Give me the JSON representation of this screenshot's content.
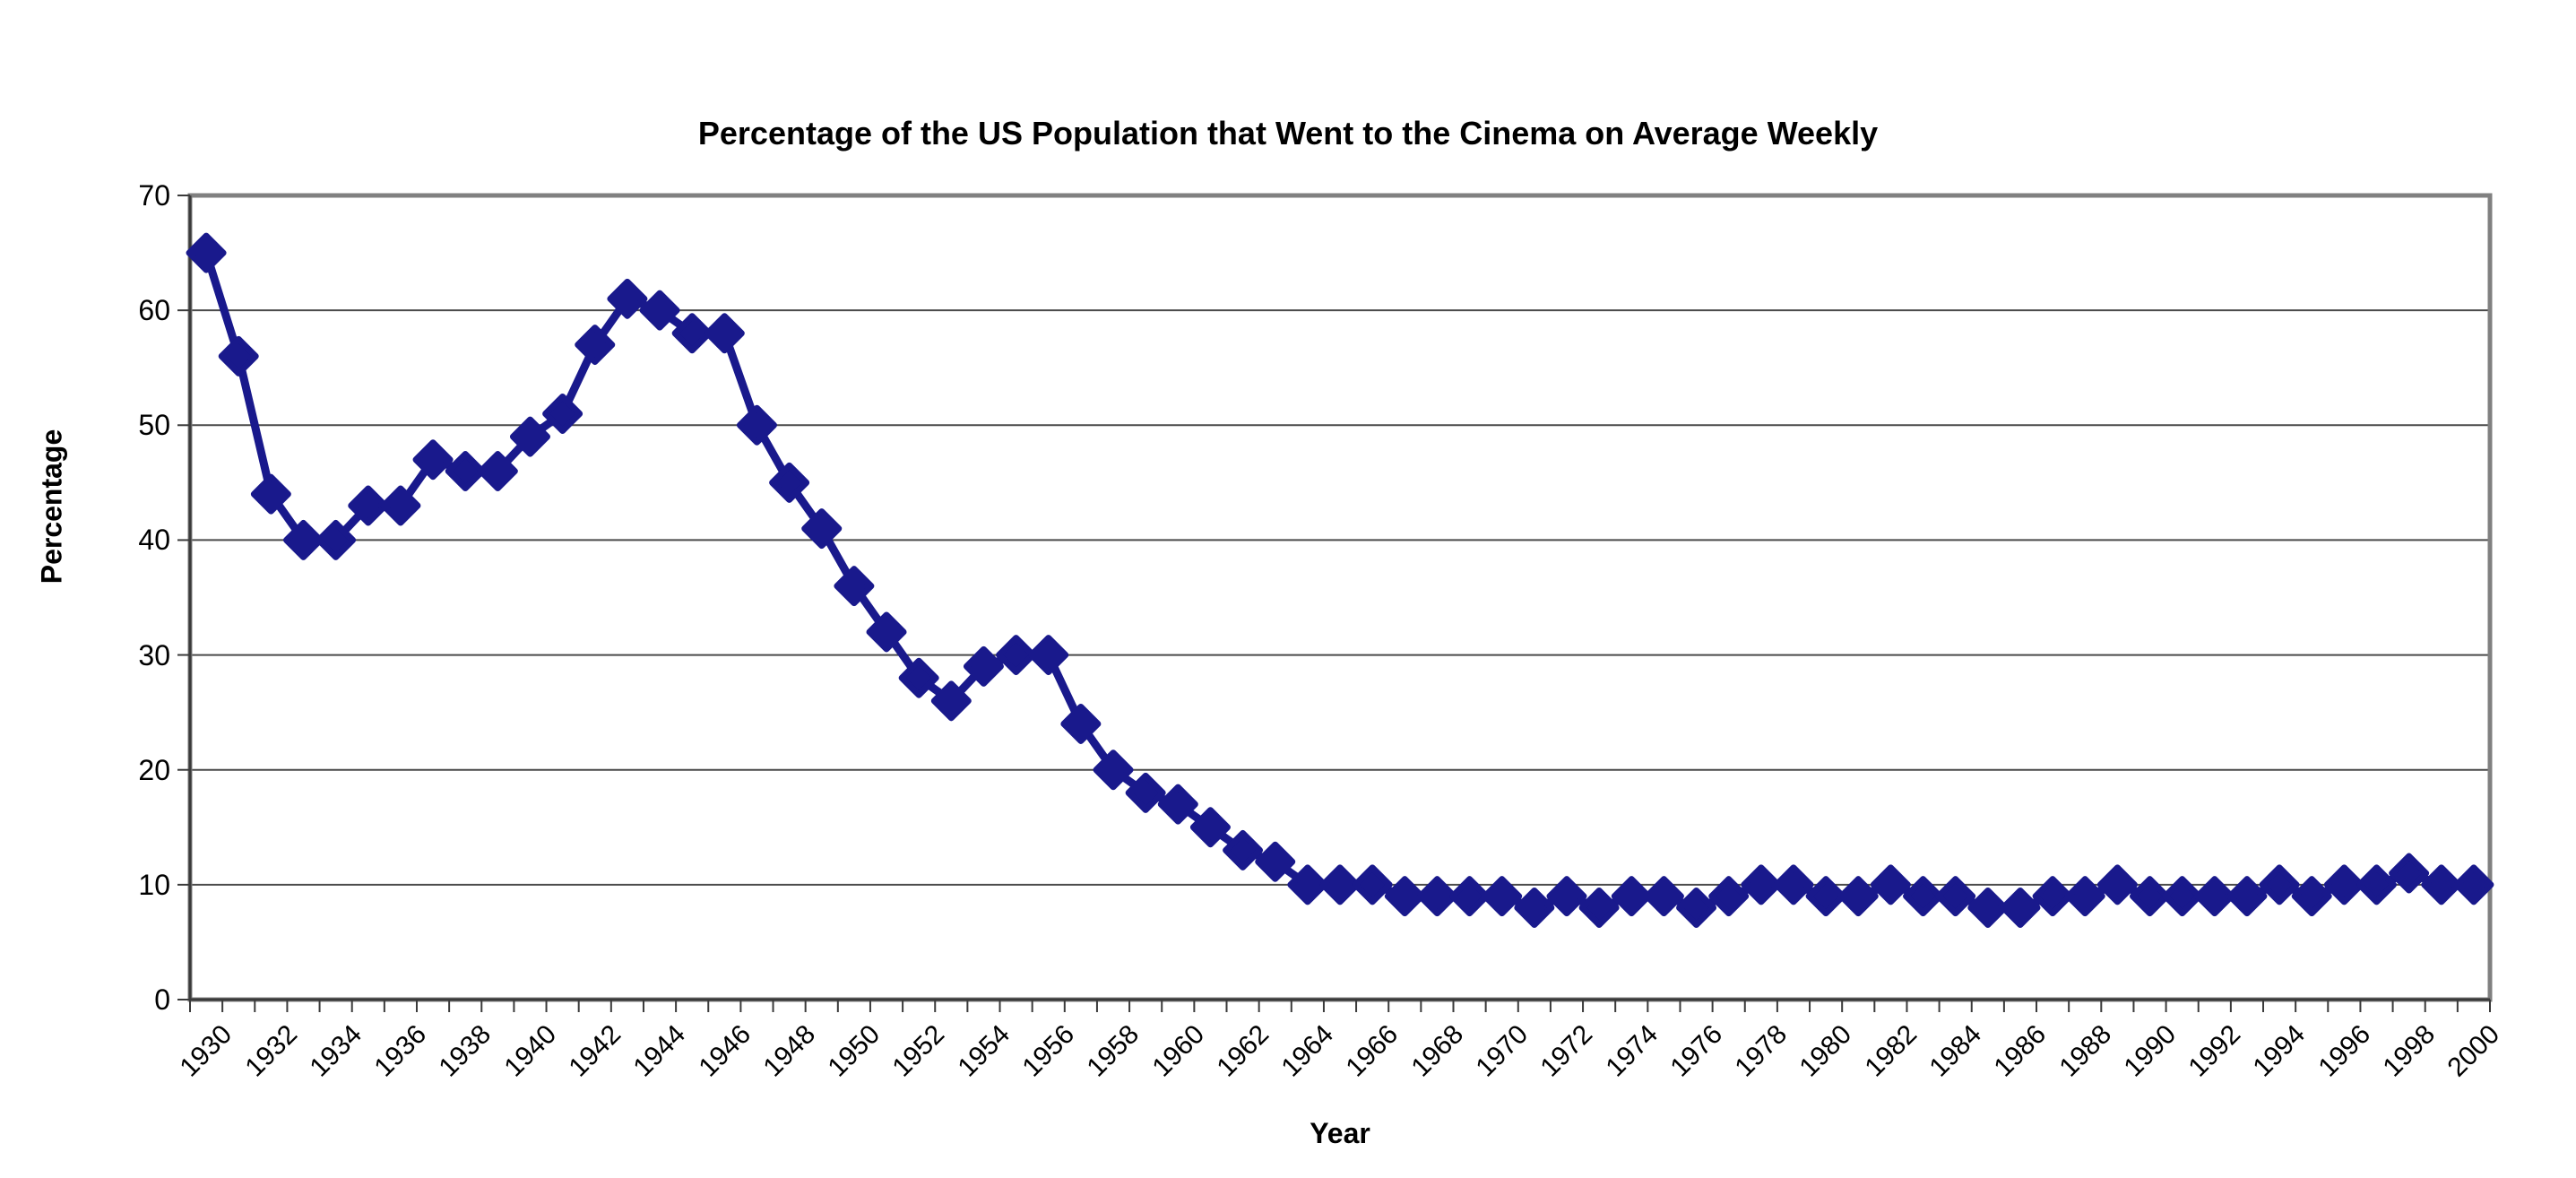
{
  "chart_data": {
    "type": "line",
    "title": "Percentage of the US Population that Went to the Cinema on Average Weekly",
    "xlabel": "Year",
    "ylabel": "Percentage",
    "legend": "none",
    "grid": "horizontal",
    "marker": "diamond",
    "series_color": "#19198C",
    "grid_color": "#4a4a4a",
    "border_color": "#808080",
    "axis_color": "#3a3a3a",
    "ylim": [
      0,
      70
    ],
    "yticks": [
      0,
      10,
      20,
      30,
      40,
      50,
      60,
      70
    ],
    "x_tick_label_interval": 2,
    "x": [
      1930,
      1931,
      1932,
      1933,
      1934,
      1935,
      1936,
      1937,
      1938,
      1939,
      1940,
      1941,
      1942,
      1943,
      1944,
      1945,
      1946,
      1947,
      1948,
      1949,
      1950,
      1951,
      1952,
      1953,
      1954,
      1955,
      1956,
      1957,
      1958,
      1959,
      1960,
      1961,
      1962,
      1963,
      1964,
      1965,
      1966,
      1967,
      1968,
      1969,
      1970,
      1971,
      1972,
      1973,
      1974,
      1975,
      1976,
      1977,
      1978,
      1979,
      1980,
      1981,
      1982,
      1983,
      1984,
      1985,
      1986,
      1987,
      1988,
      1989,
      1990,
      1991,
      1992,
      1993,
      1994,
      1995,
      1996,
      1997,
      1998,
      1999,
      2000
    ],
    "values": [
      65,
      56,
      44,
      40,
      40,
      43,
      43,
      47,
      46,
      46,
      49,
      51,
      57,
      61,
      60,
      58,
      58,
      50,
      45,
      41,
      36,
      32,
      28,
      26,
      29,
      30,
      30,
      24,
      20,
      18,
      17,
      15,
      13,
      12,
      10,
      10,
      10,
      9,
      9,
      9,
      9,
      8,
      9,
      8,
      9,
      9,
      8,
      9,
      10,
      10,
      9,
      9,
      10,
      9,
      9,
      8,
      8,
      9,
      9,
      10,
      9,
      9,
      9,
      9,
      10,
      9,
      10,
      10,
      11,
      10,
      10
    ]
  }
}
